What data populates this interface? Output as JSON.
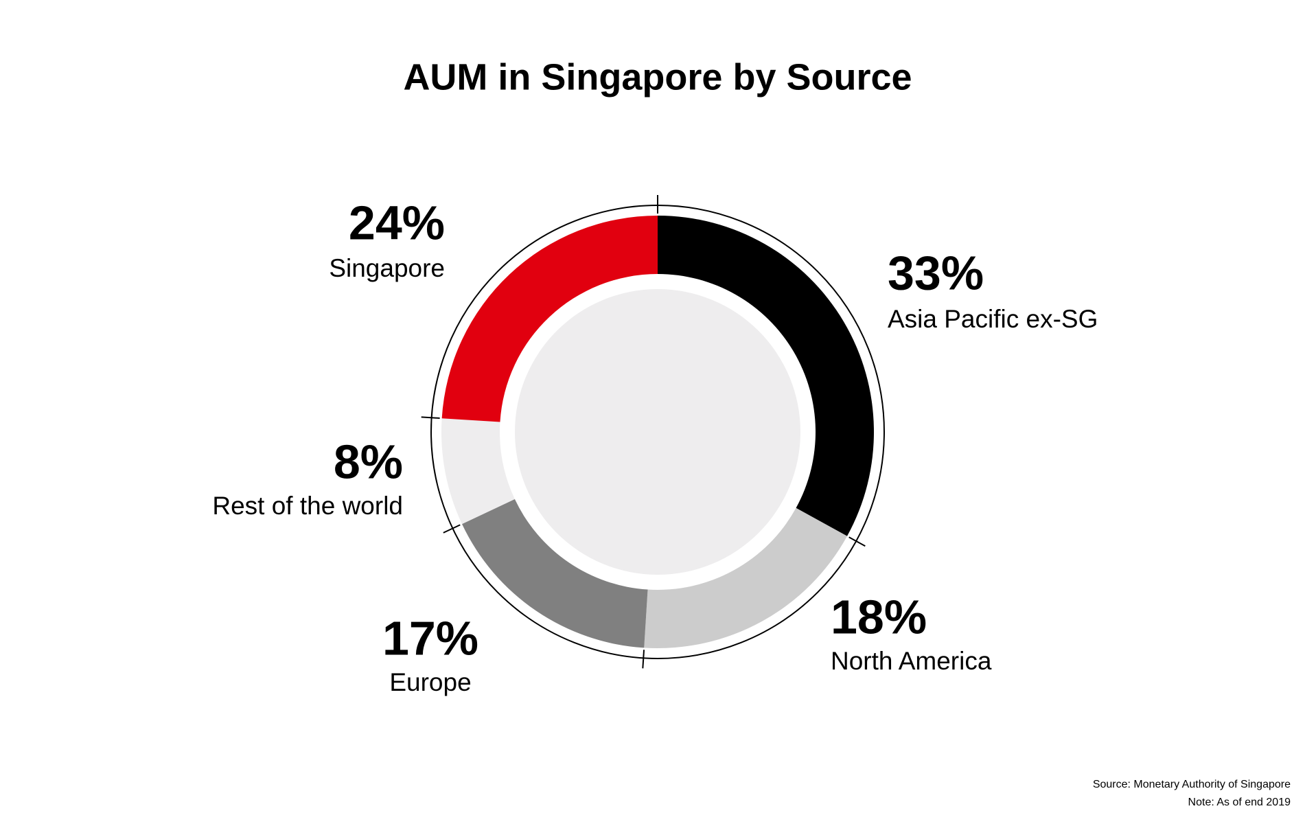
{
  "chart_data": {
    "type": "pie",
    "title": "AUM in Singapore by Source",
    "categories": [
      "Asia Pacific ex-SG",
      "North America",
      "Europe",
      "Rest of the world",
      "Singapore"
    ],
    "values": [
      33,
      18,
      17,
      8,
      24
    ],
    "value_labels": [
      "33%",
      "18%",
      "17%",
      "8%",
      "24%"
    ],
    "colors": [
      "#000000",
      "#cccccc",
      "#808080",
      "#eeedee",
      "#e1000f"
    ],
    "source": "Source: Monetary Authority of Singapore",
    "note": "Note: As of end 2019"
  }
}
